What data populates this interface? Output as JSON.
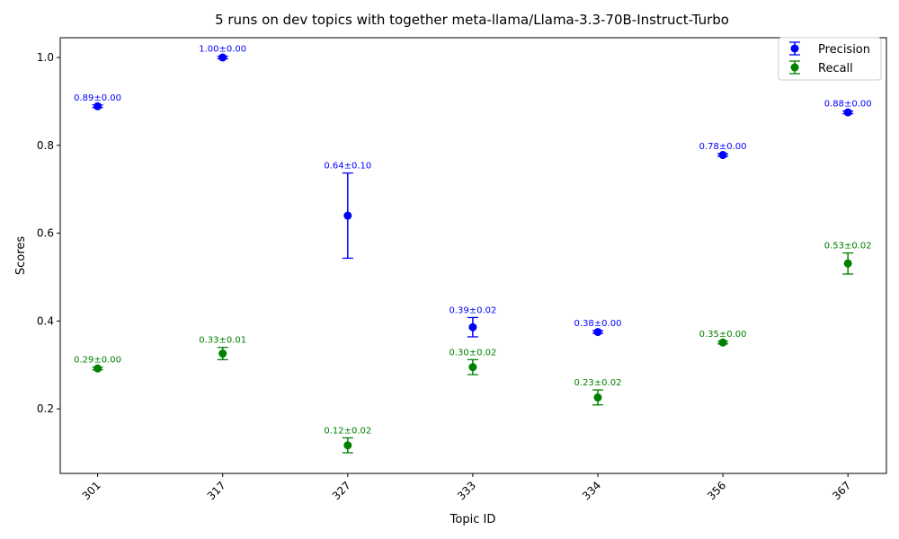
{
  "chart_data": {
    "type": "scatter",
    "title": "5 runs on dev topics with together meta-llama/Llama-3.3-70B-Instruct-Turbo",
    "xlabel": "Topic ID",
    "ylabel": "Scores",
    "categories": [
      "301",
      "317",
      "327",
      "333",
      "334",
      "356",
      "367"
    ],
    "ylim": [
      0.053,
      1.045
    ],
    "yticks": [
      0.2,
      0.4,
      0.6,
      0.8,
      1.0
    ],
    "ytick_labels": [
      "0.2",
      "0.4",
      "0.6",
      "0.8",
      "1.0"
    ],
    "grid": false,
    "legend_position": "top-right",
    "series": [
      {
        "name": "Precision",
        "color": "#0000ff",
        "values": [
          0.889,
          1.0,
          0.64,
          0.386,
          0.375,
          0.778,
          0.875
        ],
        "errors": [
          0.003,
          0.003,
          0.097,
          0.022,
          0.003,
          0.003,
          0.003
        ],
        "labels": [
          "0.89±0.00",
          "1.00±0.00",
          "0.64±0.10",
          "0.39±0.02",
          "0.38±0.00",
          "0.78±0.00",
          "0.88±0.00"
        ]
      },
      {
        "name": "Recall",
        "color": "#008000",
        "values": [
          0.292,
          0.326,
          0.117,
          0.295,
          0.226,
          0.351,
          0.531
        ],
        "errors": [
          0.003,
          0.014,
          0.017,
          0.017,
          0.017,
          0.003,
          0.024
        ],
        "labels": [
          "0.29±0.00",
          "0.33±0.01",
          "0.12±0.02",
          "0.30±0.02",
          "0.23±0.02",
          "0.35±0.00",
          "0.53±0.02"
        ]
      }
    ]
  }
}
